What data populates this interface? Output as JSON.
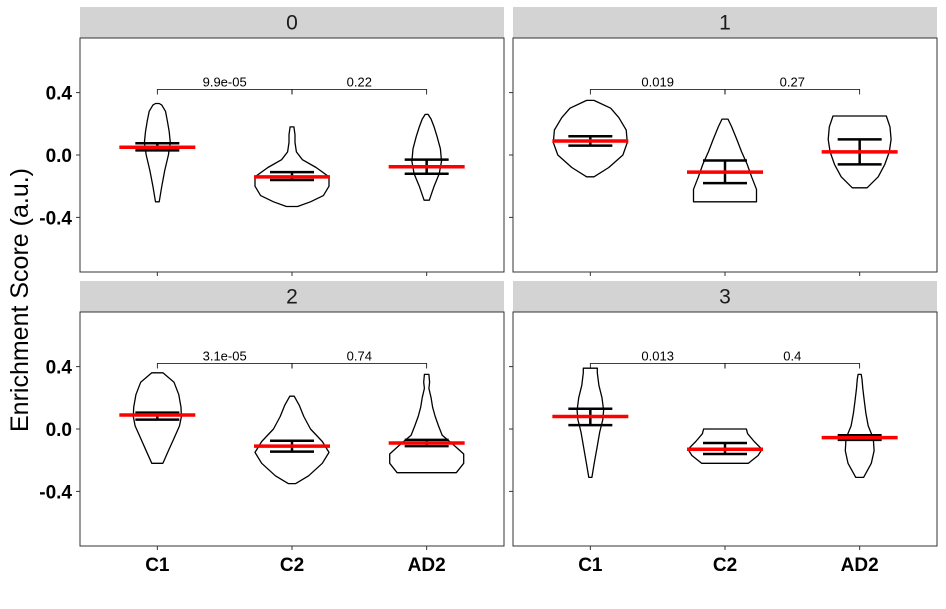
{
  "chart_data": {
    "type": "violin",
    "ylabel": "Enrichment Score (a.u.)",
    "ylim": [
      -0.75,
      0.75
    ],
    "yticks": [
      -0.4,
      0.0,
      0.4
    ],
    "ytick_labels": [
      "-0.4",
      "0.0",
      "0.4"
    ],
    "categories": [
      "C1",
      "C2",
      "AD2"
    ],
    "colors": {
      "mean": "#ff0000",
      "errorbar": "#000000",
      "violin": "#000000",
      "strip": "#d3d3d3"
    },
    "facets": [
      {
        "label": "0",
        "comparisons": [
          {
            "from": "C1",
            "to": "C2",
            "p": "9.9e-05"
          },
          {
            "from": "C2",
            "to": "AD2",
            "p": "0.22"
          }
        ],
        "bracket_y": 0.42,
        "groups": [
          {
            "name": "C1",
            "min": -0.3,
            "max": 0.33,
            "mean": 0.05,
            "ci": [
              0.03,
              0.075
            ],
            "density": [
              [
                -0.3,
                0.05
              ],
              [
                -0.2,
                0.12
              ],
              [
                -0.1,
                0.2
              ],
              [
                0.0,
                0.3
              ],
              [
                0.08,
                0.35
              ],
              [
                0.15,
                0.32
              ],
              [
                0.22,
                0.27
              ],
              [
                0.28,
                0.22
              ],
              [
                0.32,
                0.12
              ],
              [
                0.33,
                0.05
              ]
            ]
          },
          {
            "name": "C2",
            "min": -0.33,
            "max": 0.18,
            "mean": -0.14,
            "ci": [
              -0.16,
              -0.11
            ],
            "density": [
              [
                -0.33,
                0.15
              ],
              [
                -0.3,
                0.5
              ],
              [
                -0.26,
                0.85
              ],
              [
                -0.2,
                1.0
              ],
              [
                -0.14,
                1.0
              ],
              [
                -0.08,
                0.65
              ],
              [
                -0.03,
                0.28
              ],
              [
                0.02,
                0.12
              ],
              [
                0.08,
                0.08
              ],
              [
                0.13,
                0.08
              ],
              [
                0.18,
                0.05
              ]
            ]
          },
          {
            "name": "AD2",
            "min": -0.29,
            "max": 0.26,
            "mean": -0.075,
            "ci": [
              -0.12,
              -0.03
            ],
            "density": [
              [
                -0.29,
                0.07
              ],
              [
                -0.2,
                0.2
              ],
              [
                -0.12,
                0.34
              ],
              [
                -0.04,
                0.4
              ],
              [
                0.04,
                0.37
              ],
              [
                0.12,
                0.28
              ],
              [
                0.18,
                0.2
              ],
              [
                0.23,
                0.12
              ],
              [
                0.26,
                0.04
              ]
            ]
          }
        ]
      },
      {
        "label": "1",
        "comparisons": [
          {
            "from": "C1",
            "to": "C2",
            "p": "0.019"
          },
          {
            "from": "C2",
            "to": "AD2",
            "p": "0.27"
          }
        ],
        "bracket_y": 0.42,
        "groups": [
          {
            "name": "C1",
            "min": -0.14,
            "max": 0.35,
            "mean": 0.09,
            "ci": [
              0.06,
              0.12
            ],
            "density": [
              [
                -0.14,
                0.1
              ],
              [
                -0.08,
                0.5
              ],
              [
                0.0,
                0.88
              ],
              [
                0.08,
                1.0
              ],
              [
                0.16,
                0.97
              ],
              [
                0.24,
                0.77
              ],
              [
                0.3,
                0.55
              ],
              [
                0.35,
                0.1
              ]
            ]
          },
          {
            "name": "C2",
            "min": -0.3,
            "max": 0.23,
            "mean": -0.11,
            "ci": [
              -0.18,
              -0.035
            ],
            "density": [
              [
                -0.3,
                0.85
              ],
              [
                -0.22,
                0.85
              ],
              [
                -0.14,
                0.72
              ],
              [
                -0.06,
                0.6
              ],
              [
                0.02,
                0.45
              ],
              [
                0.1,
                0.32
              ],
              [
                0.18,
                0.18
              ],
              [
                0.23,
                0.08
              ]
            ]
          },
          {
            "name": "AD2",
            "min": -0.21,
            "max": 0.25,
            "mean": 0.02,
            "ci": [
              -0.06,
              0.1
            ],
            "density": [
              [
                -0.21,
                0.2
              ],
              [
                -0.14,
                0.5
              ],
              [
                -0.06,
                0.68
              ],
              [
                0.02,
                0.8
              ],
              [
                0.1,
                0.85
              ],
              [
                0.18,
                0.82
              ],
              [
                0.25,
                0.72
              ]
            ]
          }
        ]
      },
      {
        "label": "2",
        "comparisons": [
          {
            "from": "C1",
            "to": "C2",
            "p": "3.1e-05"
          },
          {
            "from": "C2",
            "to": "AD2",
            "p": "0.74"
          }
        ],
        "bracket_y": 0.42,
        "groups": [
          {
            "name": "C1",
            "min": -0.22,
            "max": 0.36,
            "mean": 0.09,
            "ci": [
              0.06,
              0.105
            ],
            "density": [
              [
                -0.22,
                0.15
              ],
              [
                -0.14,
                0.3
              ],
              [
                -0.06,
                0.45
              ],
              [
                0.02,
                0.6
              ],
              [
                0.08,
                0.65
              ],
              [
                0.14,
                0.64
              ],
              [
                0.22,
                0.58
              ],
              [
                0.3,
                0.45
              ],
              [
                0.36,
                0.15
              ]
            ]
          },
          {
            "name": "C2",
            "min": -0.35,
            "max": 0.21,
            "mean": -0.11,
            "ci": [
              -0.145,
              -0.075
            ],
            "density": [
              [
                -0.35,
                0.1
              ],
              [
                -0.3,
                0.45
              ],
              [
                -0.22,
                0.82
              ],
              [
                -0.15,
                1.0
              ],
              [
                -0.08,
                0.82
              ],
              [
                0.0,
                0.5
              ],
              [
                0.08,
                0.32
              ],
              [
                0.15,
                0.2
              ],
              [
                0.21,
                0.06
              ]
            ]
          },
          {
            "name": "AD2",
            "min": -0.28,
            "max": 0.35,
            "mean": -0.09,
            "ci": [
              -0.11,
              -0.07
            ],
            "density": [
              [
                -0.28,
                0.8
              ],
              [
                -0.22,
                1.0
              ],
              [
                -0.16,
                1.0
              ],
              [
                -0.1,
                0.72
              ],
              [
                -0.04,
                0.42
              ],
              [
                0.02,
                0.32
              ],
              [
                0.08,
                0.23
              ],
              [
                0.14,
                0.16
              ],
              [
                0.2,
                0.12
              ],
              [
                0.26,
                0.06
              ],
              [
                0.3,
                0.08
              ],
              [
                0.35,
                0.06
              ]
            ]
          }
        ]
      },
      {
        "label": "3",
        "comparisons": [
          {
            "from": "C1",
            "to": "C2",
            "p": "0.013"
          },
          {
            "from": "C2",
            "to": "AD2",
            "p": "0.4"
          }
        ],
        "bracket_y": 0.42,
        "groups": [
          {
            "name": "C1",
            "min": -0.31,
            "max": 0.39,
            "mean": 0.08,
            "ci": [
              0.025,
              0.13
            ],
            "density": [
              [
                -0.31,
                0.04
              ],
              [
                -0.22,
                0.1
              ],
              [
                -0.12,
                0.17
              ],
              [
                -0.02,
                0.24
              ],
              [
                0.06,
                0.32
              ],
              [
                0.12,
                0.34
              ],
              [
                0.2,
                0.3
              ],
              [
                0.28,
                0.22
              ],
              [
                0.36,
                0.18
              ],
              [
                0.39,
                0.18
              ]
            ]
          },
          {
            "name": "C2",
            "min": -0.22,
            "max": 0.0,
            "mean": -0.13,
            "ci": [
              -0.16,
              -0.09
            ],
            "density": [
              [
                -0.22,
                0.6
              ],
              [
                -0.17,
                0.85
              ],
              [
                -0.13,
                0.95
              ],
              [
                -0.08,
                0.75
              ],
              [
                -0.03,
                0.58
              ],
              [
                0.0,
                0.55
              ]
            ]
          },
          {
            "name": "AD2",
            "min": -0.31,
            "max": 0.35,
            "mean": -0.055,
            "ci": [
              -0.07,
              -0.04
            ],
            "density": [
              [
                -0.31,
                0.1
              ],
              [
                -0.22,
                0.3
              ],
              [
                -0.14,
                0.37
              ],
              [
                -0.06,
                0.35
              ],
              [
                0.02,
                0.22
              ],
              [
                0.1,
                0.16
              ],
              [
                0.18,
                0.12
              ],
              [
                0.26,
                0.08
              ],
              [
                0.32,
                0.06
              ],
              [
                0.35,
                0.04
              ]
            ]
          }
        ]
      }
    ]
  }
}
